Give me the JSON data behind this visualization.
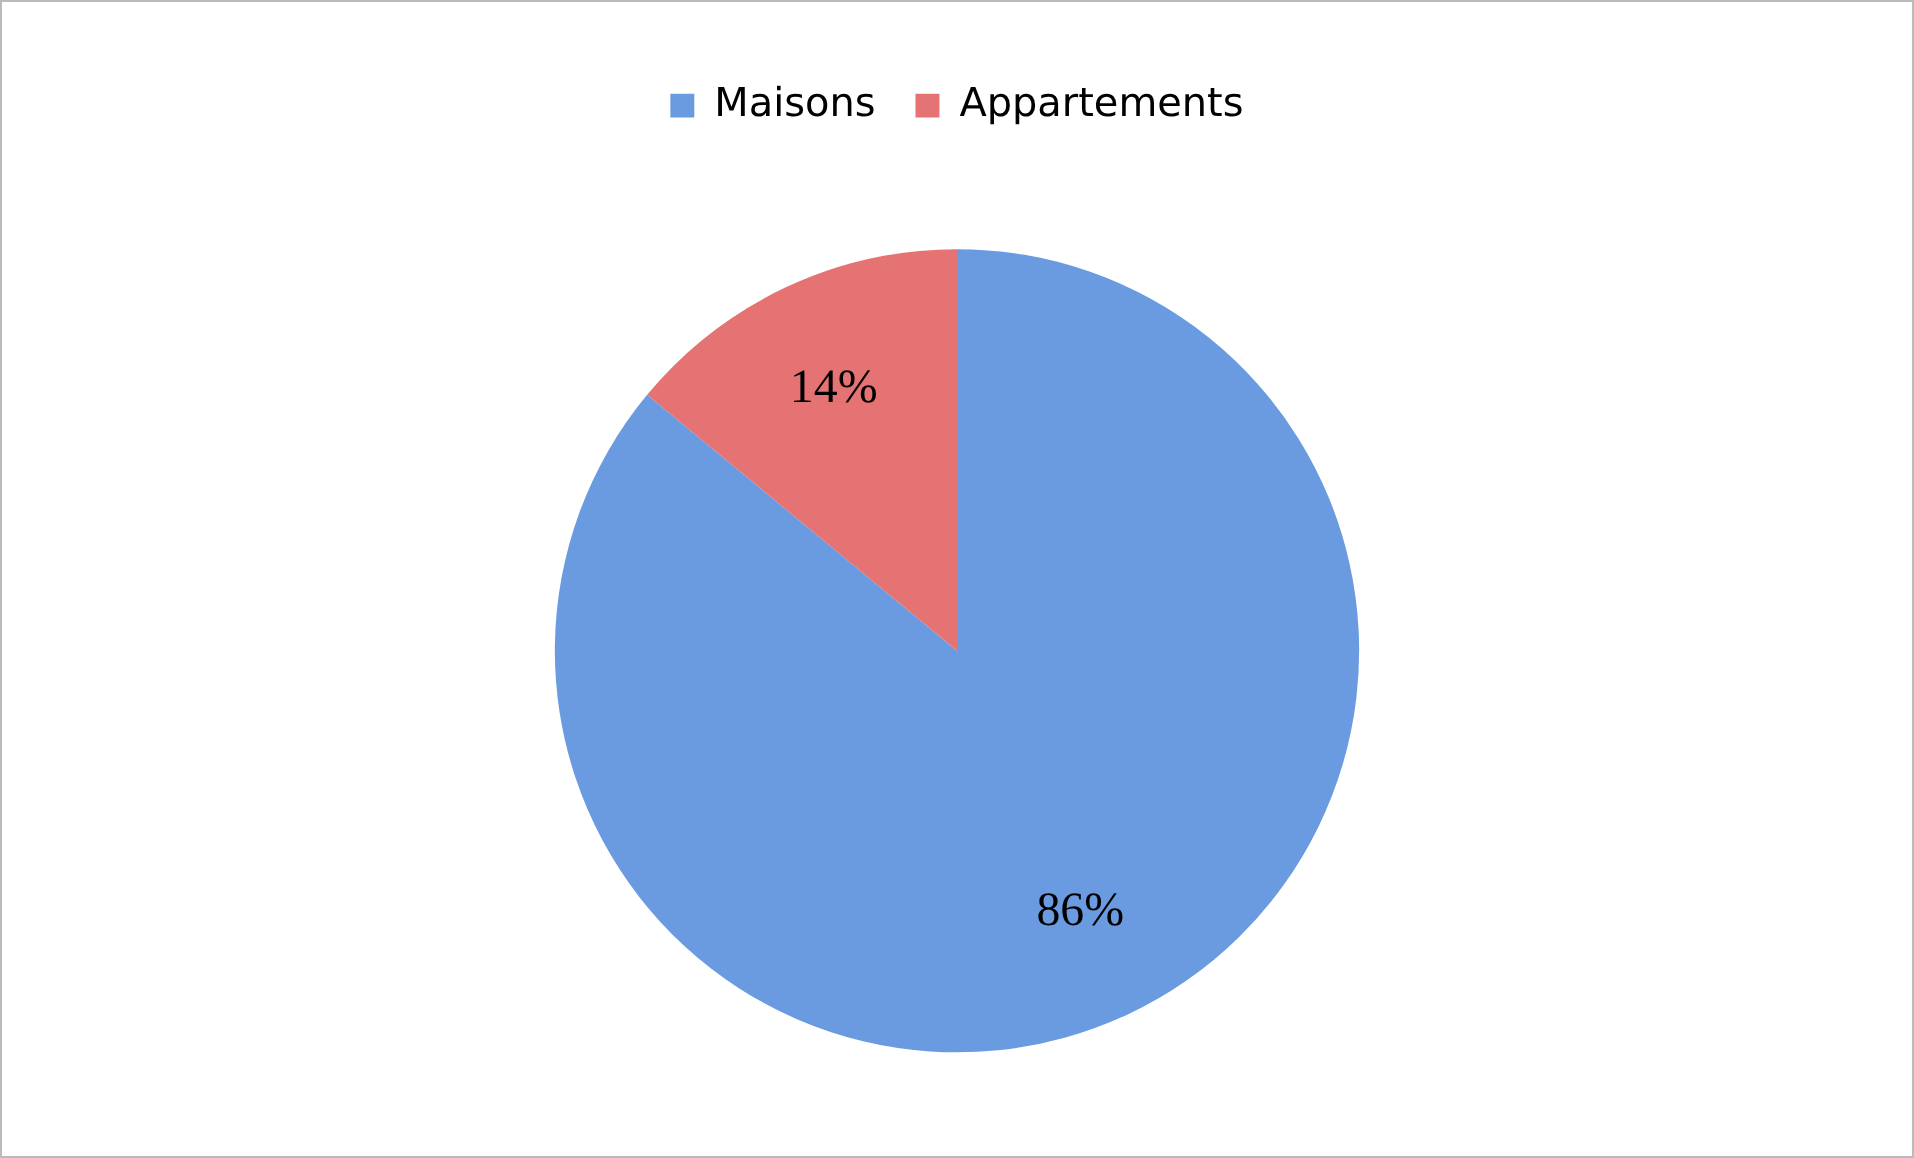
{
  "chart_data": {
    "type": "pie",
    "categories": [
      "Maisons",
      "Appartements"
    ],
    "values": [
      86,
      14
    ],
    "colors": [
      "#6a9be0",
      "#e57373"
    ],
    "value_labels": [
      "86%",
      "14%"
    ],
    "legend": "top"
  }
}
